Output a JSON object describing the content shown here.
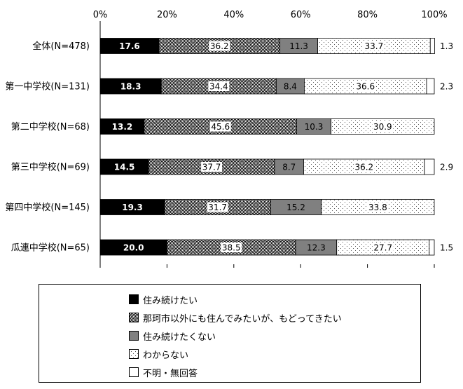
{
  "chart_data": {
    "type": "bar",
    "orientation": "horizontal",
    "stacked": true,
    "categories": [
      "全体(N=478)",
      "第一中学校(N=131)",
      "第二中学校(N=68)",
      "第三中学校(N=69)",
      "第四中学校(N=145)",
      "瓜連中学校(N=65)"
    ],
    "series": [
      {
        "name": "住み続けたい",
        "values": [
          17.6,
          18.3,
          13.2,
          14.5,
          19.3,
          20.0
        ],
        "labels": [
          "17.6",
          "18.3",
          "13.2",
          "14.5",
          "19.3",
          "20.0"
        ],
        "pattern": "solid-black"
      },
      {
        "name": "那珂市以外にも住んでみたいが、もどってきたい",
        "values": [
          36.2,
          34.4,
          45.6,
          37.7,
          31.7,
          38.5
        ],
        "labels": [
          "36.2",
          "34.4",
          "45.6",
          "37.7",
          "31.7",
          "38.5"
        ],
        "pattern": "crosshatch"
      },
      {
        "name": "住み続けたくない",
        "values": [
          11.3,
          8.4,
          10.3,
          8.7,
          15.2,
          12.3
        ],
        "labels": [
          "11.3",
          "8.4",
          "10.3",
          "8.7",
          "15.2",
          "12.3"
        ],
        "pattern": "solid-gray"
      },
      {
        "name": "わからない",
        "values": [
          33.7,
          36.6,
          30.9,
          36.2,
          33.8,
          27.7
        ],
        "labels": [
          "33.7",
          "36.6",
          "30.9",
          "36.2",
          "33.8",
          "27.7"
        ],
        "pattern": "dots"
      },
      {
        "name": "不明・無回答",
        "values": [
          1.3,
          2.3,
          0,
          2.9,
          0,
          1.5
        ],
        "labels": [
          "1.3",
          "2.3",
          "",
          "2.9",
          "",
          "1.5"
        ],
        "pattern": "white"
      }
    ],
    "xlim": [
      0,
      100
    ],
    "xticks": [
      "0%",
      "20%",
      "40%",
      "60%",
      "80%",
      "100%"
    ],
    "grid": false,
    "legend_position": "bottom",
    "colors": {
      "black": "#000000",
      "gray": "#808080",
      "white": "#ffffff"
    }
  }
}
